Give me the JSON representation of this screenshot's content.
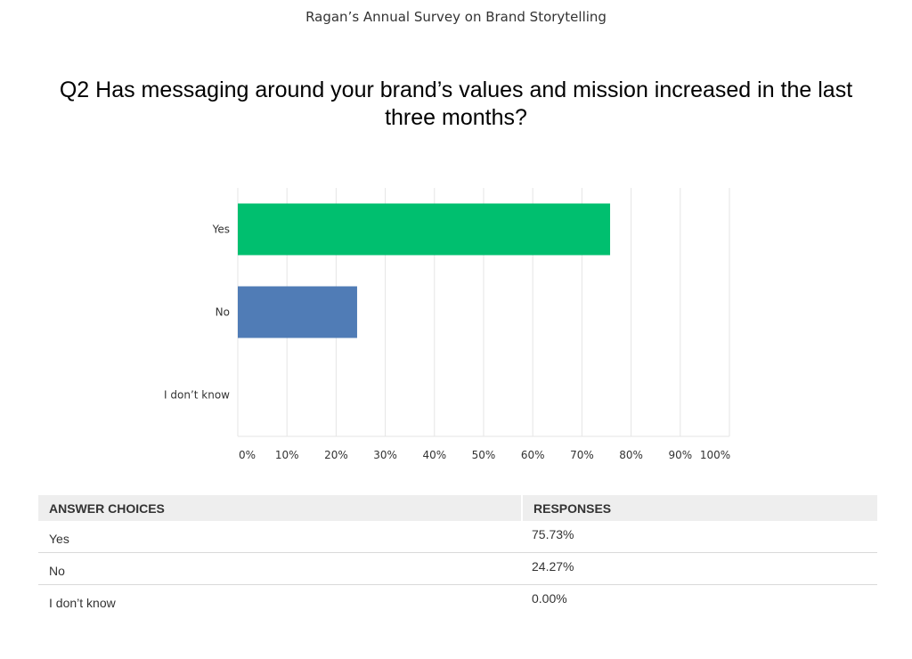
{
  "header": {
    "survey_title": "Ragan’s Annual Survey on Brand Storytelling"
  },
  "question": {
    "title": "Q2 Has messaging around your brand’s values and mission increased in the last three months?"
  },
  "chart_data": {
    "type": "bar",
    "orientation": "horizontal",
    "categories": [
      "Yes",
      "No",
      "I don’t know"
    ],
    "values": [
      75.73,
      24.27,
      0.0
    ],
    "colors": [
      "#00bf6f",
      "#507cb6",
      "#f05b24"
    ],
    "xlim": [
      0,
      100
    ],
    "xticks": [
      "0%",
      "10%",
      "20%",
      "30%",
      "40%",
      "50%",
      "60%",
      "70%",
      "80%",
      "90%",
      "100%"
    ],
    "grid": true,
    "gridline_color": "#e5e5e5"
  },
  "table": {
    "headers": [
      "ANSWER CHOICES",
      "RESPONSES"
    ],
    "rows": [
      {
        "choice": "Yes",
        "response": "75.73%"
      },
      {
        "choice": "No",
        "response": "24.27%"
      },
      {
        "choice": "I don’t know",
        "response": "0.00%"
      }
    ]
  }
}
